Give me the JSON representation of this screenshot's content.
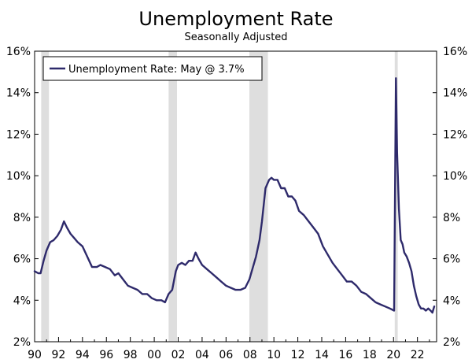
{
  "chart_data": {
    "type": "line",
    "title": "Unemployment Rate",
    "subtitle": "Seasonally Adjusted",
    "xlabel": "",
    "ylabel": "",
    "xlim": [
      1990,
      2023.6
    ],
    "ylim": [
      2,
      16
    ],
    "y_ticks": [
      2,
      4,
      6,
      8,
      10,
      12,
      14,
      16
    ],
    "y_tick_labels": [
      "2%",
      "4%",
      "6%",
      "8%",
      "10%",
      "12%",
      "14%",
      "16%"
    ],
    "x_tick_labels": [
      "90",
      "92",
      "94",
      "96",
      "98",
      "00",
      "02",
      "04",
      "06",
      "08",
      "10",
      "12",
      "14",
      "16",
      "18",
      "20",
      "22"
    ],
    "x_tick_years": [
      1990,
      1992,
      1994,
      1996,
      1998,
      2000,
      2002,
      2004,
      2006,
      2008,
      2010,
      2012,
      2014,
      2016,
      2018,
      2020,
      2022
    ],
    "grid": false,
    "legend_position": "top-left",
    "line_color": "#2e2a6b",
    "recession_color": "#dedede",
    "recessions": [
      [
        1990.55,
        1991.2
      ],
      [
        2001.2,
        2001.9
      ],
      [
        2007.95,
        2009.5
      ],
      [
        2020.1,
        2020.35
      ]
    ],
    "series": [
      {
        "name": "Unemployment Rate: May @ 3.7%",
        "x": [
          1990.0,
          1990.3,
          1990.5,
          1990.75,
          1991.0,
          1991.3,
          1991.6,
          1991.9,
          1992.2,
          1992.45,
          1992.7,
          1993.0,
          1993.3,
          1993.6,
          1994.0,
          1994.4,
          1994.8,
          1995.2,
          1995.5,
          1995.9,
          1996.3,
          1996.7,
          1997.0,
          1997.4,
          1997.8,
          1998.2,
          1998.6,
          1999.0,
          1999.4,
          1999.8,
          2000.2,
          2000.6,
          2000.9,
          2001.2,
          2001.5,
          2001.8,
          2002.0,
          2002.3,
          2002.6,
          2002.9,
          2003.2,
          2003.45,
          2003.7,
          2004.0,
          2004.4,
          2004.8,
          2005.2,
          2005.6,
          2006.0,
          2006.4,
          2006.8,
          2007.2,
          2007.6,
          2007.95,
          2008.2,
          2008.5,
          2008.8,
          2009.0,
          2009.3,
          2009.6,
          2009.8,
          2010.0,
          2010.3,
          2010.6,
          2010.9,
          2011.2,
          2011.5,
          2011.8,
          2012.1,
          2012.5,
          2012.9,
          2013.3,
          2013.7,
          2014.1,
          2014.5,
          2014.9,
          2015.3,
          2015.7,
          2016.1,
          2016.5,
          2016.9,
          2017.3,
          2017.7,
          2018.1,
          2018.5,
          2018.9,
          2019.3,
          2019.7,
          2020.05,
          2020.2,
          2020.3,
          2020.45,
          2020.6,
          2020.75,
          2020.9,
          2021.1,
          2021.3,
          2021.5,
          2021.7,
          2021.9,
          2022.1,
          2022.3,
          2022.5,
          2022.7,
          2022.9,
          2023.1,
          2023.25,
          2023.4
        ],
        "values": [
          5.4,
          5.3,
          5.3,
          5.9,
          6.4,
          6.8,
          6.9,
          7.1,
          7.4,
          7.8,
          7.5,
          7.2,
          7.0,
          6.8,
          6.6,
          6.1,
          5.6,
          5.6,
          5.7,
          5.6,
          5.5,
          5.2,
          5.3,
          5.0,
          4.7,
          4.6,
          4.5,
          4.3,
          4.3,
          4.1,
          4.0,
          4.0,
          3.9,
          4.3,
          4.5,
          5.4,
          5.7,
          5.8,
          5.7,
          5.9,
          5.9,
          6.3,
          6.0,
          5.7,
          5.5,
          5.3,
          5.1,
          4.9,
          4.7,
          4.6,
          4.5,
          4.5,
          4.6,
          5.0,
          5.5,
          6.1,
          6.9,
          7.8,
          9.4,
          9.8,
          9.9,
          9.8,
          9.8,
          9.4,
          9.4,
          9.0,
          9.0,
          8.8,
          8.3,
          8.1,
          7.8,
          7.5,
          7.2,
          6.6,
          6.2,
          5.8,
          5.5,
          5.2,
          4.9,
          4.9,
          4.7,
          4.4,
          4.3,
          4.1,
          3.9,
          3.8,
          3.7,
          3.6,
          3.5,
          14.7,
          11.1,
          8.4,
          6.9,
          6.7,
          6.3,
          6.1,
          5.8,
          5.4,
          4.7,
          4.2,
          3.8,
          3.6,
          3.6,
          3.5,
          3.6,
          3.5,
          3.4,
          3.7
        ]
      }
    ]
  }
}
